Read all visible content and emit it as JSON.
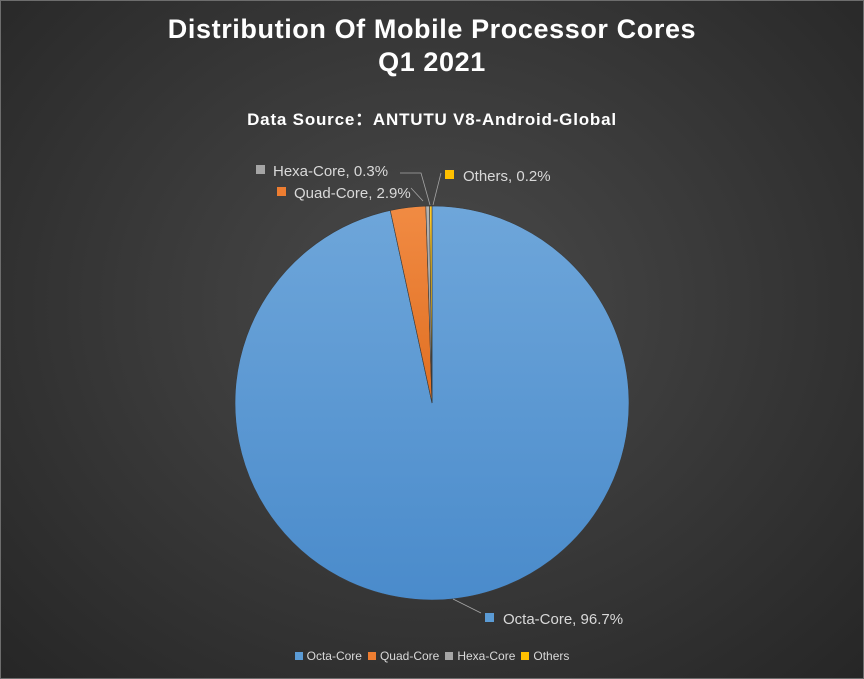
{
  "chart_data": {
    "type": "pie",
    "title_lines": [
      "Distribution Of Mobile Processor Cores",
      "Q1 2021"
    ],
    "subtitle": "Data Source：ANTUTU V8-Android-Global",
    "categories": [
      "Octa-Core",
      "Quad-Core",
      "Hexa-Core",
      "Others"
    ],
    "values": [
      96.7,
      2.9,
      0.3,
      0.2
    ],
    "colors": [
      "#5b9bd5",
      "#ed7d31",
      "#a5a5a5",
      "#ffc000"
    ],
    "data_labels": [
      "Octa-Core, 96.7%",
      "Quad-Core, 2.9%",
      "Hexa-Core, 0.3%",
      "Others, 0.2%"
    ],
    "legend_position": "bottom"
  }
}
